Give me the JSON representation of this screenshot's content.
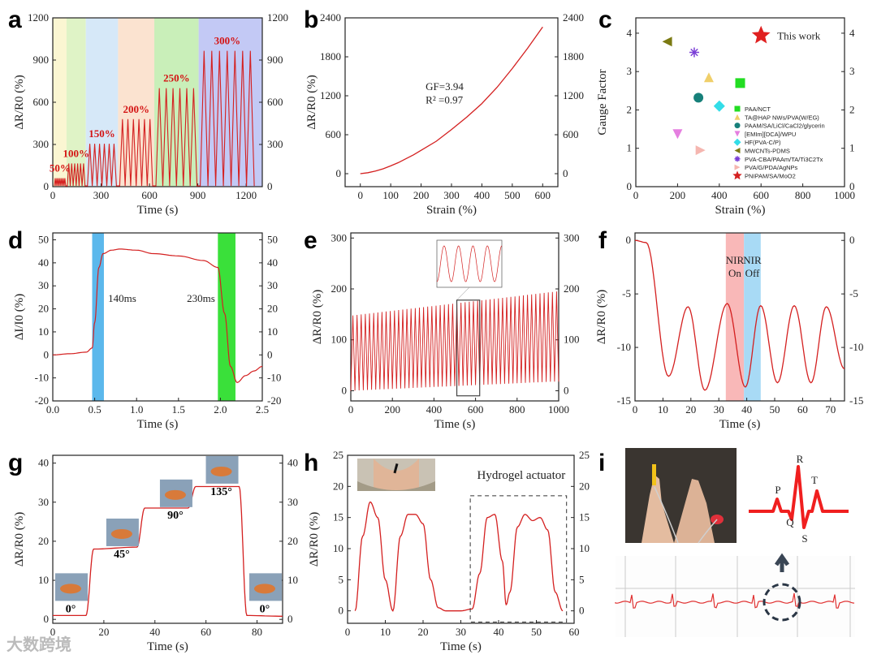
{
  "watermark": "大数跨境",
  "colors": {
    "line": "#d42020",
    "axis": "#222222"
  },
  "chart_data": [
    {
      "panel": "a",
      "type": "line",
      "xlabel": "Time (s)",
      "ylabel": "ΔR/R0 (%)",
      "xlim": [
        0,
        1300
      ],
      "ylim": [
        0,
        1200
      ],
      "xticks": [
        0,
        300,
        600,
        900,
        1200
      ],
      "yticks": [
        0,
        300,
        600,
        900,
        1200
      ],
      "bands": [
        {
          "x0": 0,
          "x1": 85,
          "color": "#fbf6d2"
        },
        {
          "x0": 85,
          "x1": 205,
          "color": "#dff3c6"
        },
        {
          "x0": 205,
          "x1": 405,
          "color": "#d6e8f8"
        },
        {
          "x0": 405,
          "x1": 630,
          "color": "#fbe3d0"
        },
        {
          "x0": 630,
          "x1": 905,
          "color": "#c9efb9"
        },
        {
          "x0": 905,
          "x1": 1300,
          "color": "#c3c9f5"
        }
      ],
      "segments": [
        {
          "label": "50%",
          "x0": 10,
          "x1": 80,
          "cycles": 7,
          "peak": 60
        },
        {
          "label": "100%",
          "x0": 90,
          "x1": 200,
          "cycles": 6,
          "peak": 165
        },
        {
          "label": "150%",
          "x0": 215,
          "x1": 395,
          "cycles": 6,
          "peak": 305
        },
        {
          "label": "200%",
          "x0": 415,
          "x1": 620,
          "cycles": 6,
          "peak": 480
        },
        {
          "label": "250%",
          "x0": 640,
          "x1": 895,
          "cycles": 6,
          "peak": 700
        },
        {
          "label": "300%",
          "x0": 915,
          "x1": 1250,
          "cycles": 7,
          "peak": 965
        }
      ]
    },
    {
      "panel": "b",
      "type": "line",
      "xlabel": "Strain (%)",
      "ylabel": "ΔR/R0 (%)",
      "xlim": [
        -50,
        650
      ],
      "ylim": [
        -200,
        2400
      ],
      "xticks": [
        0,
        100,
        200,
        300,
        400,
        500,
        600
      ],
      "yticks": [
        0,
        600,
        1200,
        1800,
        2400
      ],
      "x": [
        0,
        25,
        50,
        75,
        100,
        125,
        150,
        175,
        200,
        250,
        300,
        350,
        400,
        450,
        500,
        550,
        600
      ],
      "y": [
        0,
        15,
        40,
        75,
        120,
        170,
        230,
        290,
        360,
        500,
        680,
        870,
        1080,
        1330,
        1620,
        1930,
        2260
      ],
      "annotations": [
        "GF=3.94",
        "R² =0.97"
      ]
    },
    {
      "panel": "c",
      "type": "scatter",
      "xlabel": "Strain (%)",
      "ylabel": "Gauge Factor",
      "xlim": [
        0,
        1000
      ],
      "ylim": [
        0,
        4.4
      ],
      "xticks": [
        0,
        200,
        400,
        600,
        800,
        1000
      ],
      "yticks": [
        0,
        1,
        2,
        3,
        4
      ],
      "points": [
        {
          "name": "This work",
          "x": 600,
          "y": 3.94,
          "marker": "star",
          "color": "#e02020",
          "size": 12
        },
        {
          "name": "PAA/NCT",
          "x": 500,
          "y": 2.7,
          "marker": "square",
          "color": "#22dd22"
        },
        {
          "name": "TA@HAP NWs/PVA(W/EG)",
          "x": 350,
          "y": 2.85,
          "marker": "triangle-up",
          "color": "#f0cf6a"
        },
        {
          "name": "PAAM/SA/LiCl/CaCl2/glycerin",
          "x": 300,
          "y": 2.32,
          "marker": "circle",
          "color": "#17807a"
        },
        {
          "name": "[EMIm][DCA]/WPU",
          "x": 200,
          "y": 1.37,
          "marker": "triangle-down",
          "color": "#e57fe0"
        },
        {
          "name": "HF(PVA-C/P)",
          "x": 400,
          "y": 2.1,
          "marker": "diamond",
          "color": "#33dde8"
        },
        {
          "name": "MWCNTs-PDMS",
          "x": 150,
          "y": 3.78,
          "marker": "triangle-left",
          "color": "#7b7a12"
        },
        {
          "name": "PVA-CBA/PAAm/TA/Ti3C2Tx",
          "x": 280,
          "y": 3.5,
          "marker": "asterisk",
          "color": "#7b3fd6"
        },
        {
          "name": "PVA/G/PDA/AgNPs",
          "x": 310,
          "y": 0.95,
          "marker": "triangle-right",
          "color": "#f5b6b0"
        },
        {
          "name": "PNIPAM/SA/MoO2",
          "x": null,
          "y": null,
          "marker": "star",
          "color": "#d42020",
          "size": 6
        }
      ]
    },
    {
      "panel": "d",
      "type": "line",
      "xlabel": "Time (s)",
      "ylabel": "ΔI/I0 (%)",
      "xlim": [
        0,
        2.5
      ],
      "ylim": [
        -20,
        53
      ],
      "xticks": [
        0.0,
        0.5,
        1.0,
        1.5,
        2.0,
        2.5
      ],
      "yticks": [
        -20,
        -10,
        0,
        10,
        20,
        30,
        40,
        50
      ],
      "bands": [
        {
          "x0": 0.47,
          "x1": 0.61,
          "color": "#5bb8ec"
        },
        {
          "x0": 1.97,
          "x1": 2.18,
          "color": "#3ae03a"
        }
      ],
      "x": [
        0,
        0.2,
        0.4,
        0.47,
        0.5,
        0.55,
        0.6,
        0.7,
        0.8,
        1.0,
        1.2,
        1.5,
        1.8,
        1.97,
        2.05,
        2.12,
        2.2,
        2.3,
        2.4,
        2.5
      ],
      "y": [
        0,
        0.5,
        1.2,
        3,
        14,
        38,
        44,
        45.5,
        46,
        45.5,
        44,
        43,
        41,
        38,
        18,
        -5,
        -12,
        -9,
        -7,
        -5
      ],
      "annotations": [
        "140ms",
        "230ms"
      ]
    },
    {
      "panel": "e",
      "type": "line",
      "xlabel": "Time (s)",
      "ylabel": "ΔR/R0 (%)",
      "xlim": [
        0,
        1000
      ],
      "ylim": [
        -20,
        310
      ],
      "xticks": [
        0,
        200,
        400,
        600,
        800,
        1000
      ],
      "yticks": [
        0,
        100,
        200,
        300
      ],
      "cycles": 50,
      "peak_start": 148,
      "peak_end": 195,
      "valley_start": 0,
      "valley_end": 18,
      "inset_window": [
        510,
        620
      ]
    },
    {
      "panel": "f",
      "type": "line",
      "xlabel": "Time (s)",
      "ylabel": "ΔR/R0 (%)",
      "xlim": [
        0,
        75
      ],
      "ylim": [
        -15,
        0.7
      ],
      "xticks": [
        0,
        10,
        20,
        30,
        40,
        50,
        60,
        70
      ],
      "yticks": [
        -15,
        -10,
        -5,
        0
      ],
      "bands": [
        {
          "x0": 32.5,
          "x1": 39,
          "color": "#f9b8b8",
          "label": [
            "NIR",
            "On"
          ]
        },
        {
          "x0": 39,
          "x1": 45,
          "color": "#a8daf5",
          "label": [
            "NIR",
            "Off"
          ]
        }
      ],
      "x": [
        0,
        4,
        12,
        19,
        25,
        33,
        39.5,
        45,
        51,
        57,
        63,
        68.5,
        75
      ],
      "y": [
        0,
        -0.2,
        -12.7,
        -6.2,
        -14,
        -5.9,
        -13.7,
        -6.1,
        -13.3,
        -6.1,
        -13.3,
        -6.2,
        -12
      ]
    },
    {
      "panel": "g",
      "type": "line",
      "xlabel": "Time (s)",
      "ylabel": "ΔR/R0 (%)",
      "xlim": [
        0,
        90
      ],
      "ylim": [
        -1,
        42
      ],
      "xticks": [
        0,
        20,
        40,
        60,
        80
      ],
      "yticks": [
        0,
        10,
        20,
        30,
        40
      ],
      "x": [
        0,
        13,
        16,
        33,
        36,
        53,
        56,
        73,
        76,
        90
      ],
      "y": [
        1,
        1,
        18,
        18.5,
        28.5,
        28.5,
        34,
        34,
        1,
        0.8
      ],
      "angles": [
        {
          "label": "0°",
          "x": 7,
          "y": 1
        },
        {
          "label": "45°",
          "x": 27,
          "y": 15
        },
        {
          "label": "90°",
          "x": 48,
          "y": 25
        },
        {
          "label": "135°",
          "x": 66,
          "y": 31
        },
        {
          "label": "0°",
          "x": 83,
          "y": 1
        }
      ]
    },
    {
      "panel": "h",
      "type": "line",
      "xlabel": "Time (s)",
      "ylabel": "ΔR/R0 (%)",
      "xlim": [
        0,
        60
      ],
      "ylim": [
        -2,
        25
      ],
      "xticks": [
        0,
        10,
        20,
        30,
        40,
        50,
        60
      ],
      "yticks": [
        0,
        5,
        10,
        15,
        20,
        25
      ],
      "x": [
        2,
        4,
        6,
        8,
        10,
        12,
        14,
        16,
        18,
        20,
        22,
        24,
        26,
        30,
        33,
        35,
        37,
        39,
        41,
        42,
        43,
        45,
        47,
        49,
        51,
        53,
        55,
        57
      ],
      "y": [
        0,
        12,
        17.5,
        15,
        5,
        0,
        12,
        15.5,
        15.5,
        14,
        5,
        0.5,
        0,
        0,
        0.3,
        6,
        15,
        15.5,
        8,
        1,
        3,
        13.5,
        15.5,
        14.5,
        15,
        13,
        3,
        0
      ],
      "annotations": [
        "Hydrogel actuator"
      ]
    },
    {
      "panel": "i",
      "type": "diagram",
      "ecg_labels": [
        "P",
        "R",
        "Q",
        "S",
        "T"
      ]
    }
  ]
}
